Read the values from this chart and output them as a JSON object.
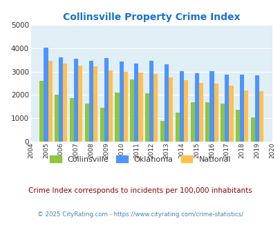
{
  "title": "Collinsville Property Crime Index",
  "title_color": "#1874CD",
  "years": [
    2004,
    2005,
    2006,
    2007,
    2008,
    2009,
    2010,
    2011,
    2012,
    2013,
    2014,
    2015,
    2016,
    2017,
    2018,
    2019,
    2020
  ],
  "collinsville": [
    null,
    2600,
    2020,
    1850,
    1620,
    1450,
    2100,
    2650,
    2060,
    880,
    1230,
    1680,
    1680,
    1630,
    1360,
    1020,
    null
  ],
  "oklahoma": [
    null,
    4040,
    3600,
    3550,
    3450,
    3580,
    3420,
    3360,
    3450,
    3310,
    3020,
    2930,
    3020,
    2880,
    2880,
    2840,
    null
  ],
  "national": [
    null,
    3470,
    3360,
    3270,
    3230,
    3060,
    2980,
    2970,
    2910,
    2760,
    2620,
    2510,
    2470,
    2380,
    2200,
    2150,
    null
  ],
  "collinsville_color": "#8DC63F",
  "oklahoma_color": "#4D94FF",
  "national_color": "#FFC04D",
  "bg_color": "#E0EEF5",
  "ylim": [
    0,
    5000
  ],
  "yticks": [
    0,
    1000,
    2000,
    3000,
    4000,
    5000
  ],
  "bar_width": 0.28,
  "footnote": "Crime Index corresponds to incidents per 100,000 inhabitants",
  "copyright": "© 2025 CityRating.com - https://www.cityrating.com/crime-statistics/",
  "footnote_color": "#8B0000",
  "copyright_color": "#4682B4"
}
